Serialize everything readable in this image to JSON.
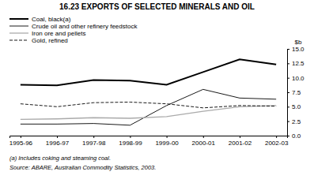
{
  "chart_data": {
    "type": "line",
    "title": "16.23   EXPORTS OF SELECTED MINERALS AND OIL",
    "ylabel": "$b",
    "categories": [
      "1995-96",
      "1996-97",
      "1997-98",
      "1998-99",
      "1999-00",
      "2000-01",
      "2001-02",
      "2002-03"
    ],
    "series": [
      {
        "name": "Coal, black(a)",
        "color": "#000000",
        "line_style": "solid",
        "values": [
          8.8,
          8.7,
          9.6,
          9.5,
          8.8,
          11.0,
          13.2,
          12.3
        ]
      },
      {
        "name": "Crude oil and other refinery feedstock",
        "color": "#000000",
        "line_style": "solid",
        "values": [
          2.0,
          2.0,
          2.1,
          1.8,
          5.2,
          8.0,
          6.5,
          6.3
        ]
      },
      {
        "name": "Iron ore and pellets",
        "color": "#aaaaaa",
        "line_style": "solid",
        "values": [
          2.8,
          2.9,
          3.1,
          3.0,
          3.3,
          4.2,
          5.0,
          5.2
        ]
      },
      {
        "name": "Gold, refined",
        "color": "#000000",
        "line_style": "dashed",
        "values": [
          5.5,
          5.0,
          5.7,
          5.8,
          5.5,
          4.8,
          5.2,
          5.1
        ]
      }
    ],
    "ylim": [
      0.0,
      15.0
    ],
    "yticks": [
      {
        "value": 0.0,
        "label": "0.0"
      },
      2.5,
      {
        "value": 5.0,
        "label": "5.0"
      },
      7.5,
      {
        "value": 10.0,
        "label": "10.0"
      },
      12.5,
      {
        "value": 15.0,
        "label": "15.0"
      }
    ],
    "grid": false,
    "legend": "top-left",
    "annotations": [
      "(a) Includes coking and steaming coal.",
      "Source: ABARE, Australian Commodity Statistics, 2003."
    ]
  }
}
